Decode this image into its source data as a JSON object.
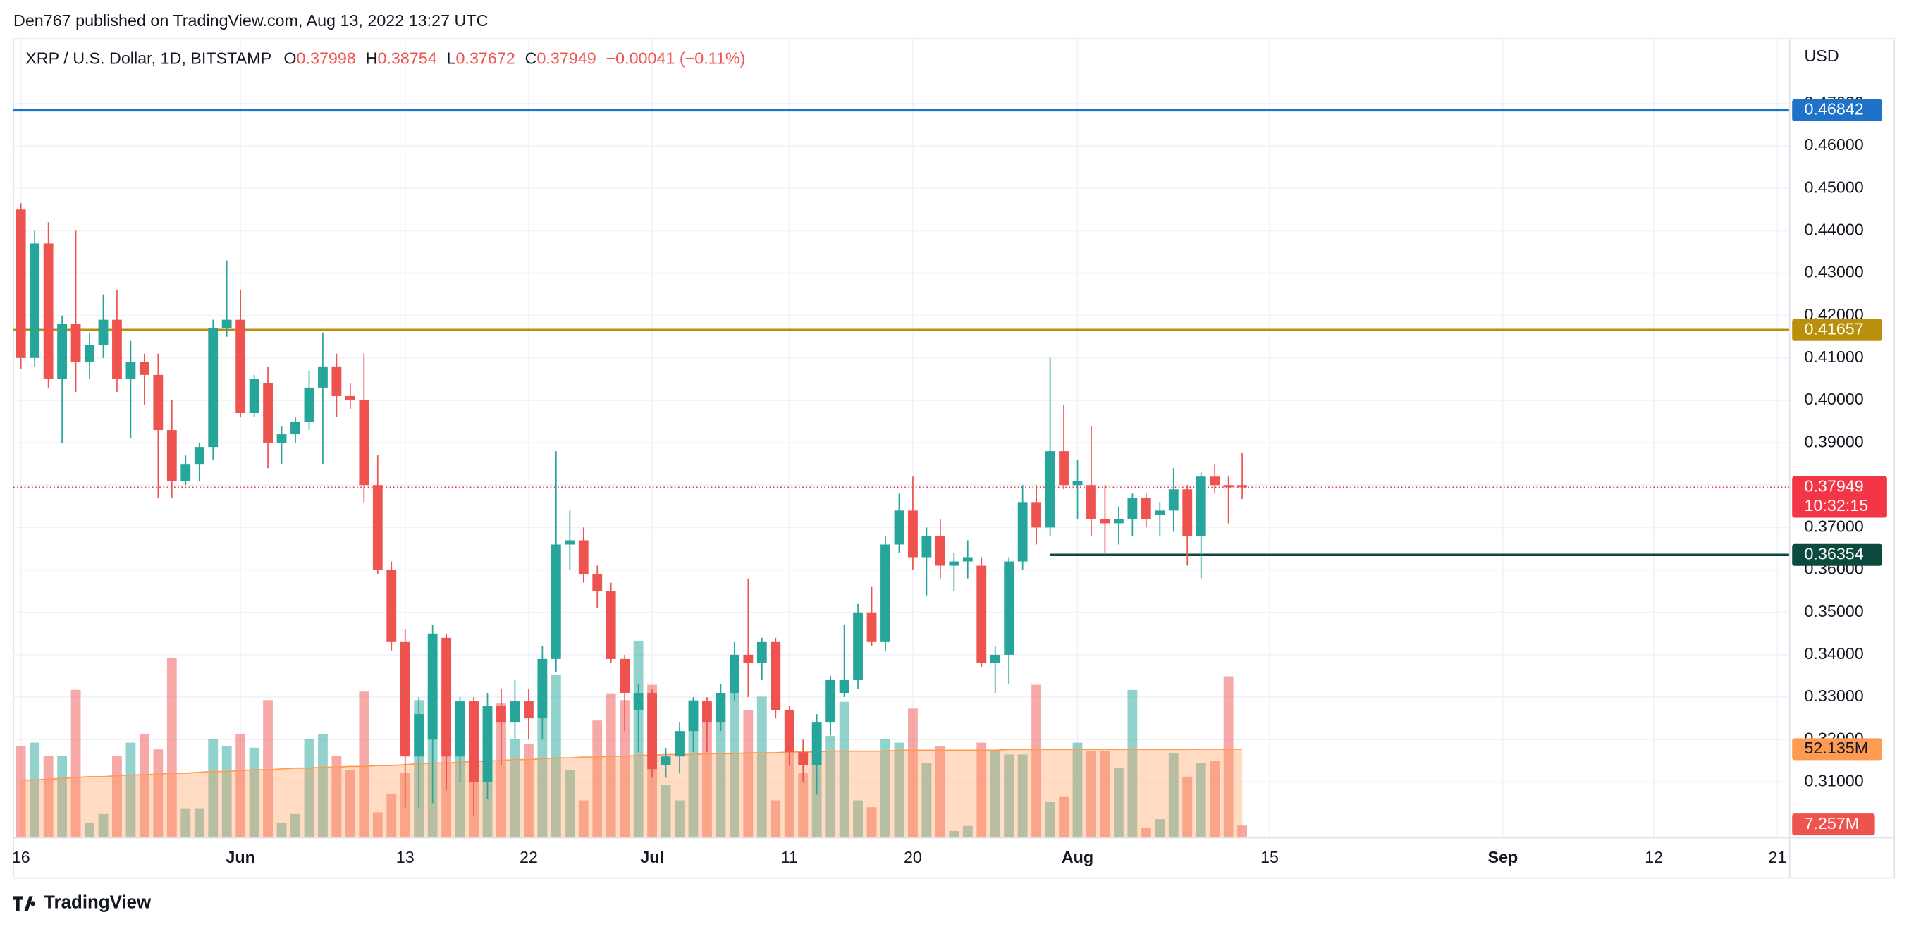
{
  "header": {
    "publisher": "Den767 published on TradingView.com, Aug 13, 2022 13:27 UTC",
    "footer": "TradingView"
  },
  "chart_data": {
    "type": "candlestick",
    "title": "XRP / U.S. Dollar, 1D, BITSTAMP",
    "legend": {
      "o": "O",
      "h": "H",
      "l": "L",
      "c": "C",
      "change": "−0.00041 (−0.11%)"
    },
    "y_unit": "USD",
    "up_color": "#26a69a",
    "down_color": "#ef5350",
    "grid": true,
    "x": [
      0,
      1,
      2,
      3,
      4,
      5,
      6,
      7,
      8,
      9,
      10,
      11,
      12,
      13,
      14,
      15,
      16,
      17,
      18,
      19,
      20,
      21,
      22,
      23,
      24,
      25,
      26,
      27,
      28,
      29,
      30,
      31,
      32,
      33,
      34,
      35,
      36,
      37,
      38,
      39,
      40,
      41,
      42,
      43,
      44,
      45,
      46,
      47,
      48,
      49,
      50,
      51,
      52,
      53,
      54,
      55,
      56,
      57,
      58,
      59,
      60,
      61,
      62,
      63,
      64,
      65,
      66,
      67,
      68,
      69,
      70,
      71,
      72,
      73,
      74,
      75,
      76,
      77,
      78,
      79,
      80,
      81,
      82,
      83,
      84,
      85,
      86,
      87,
      88,
      89
    ],
    "open": [
      0.445,
      0.41,
      0.437,
      0.405,
      0.418,
      0.409,
      0.413,
      0.419,
      0.405,
      0.409,
      0.406,
      0.393,
      0.381,
      0.385,
      0.389,
      0.417,
      0.419,
      0.397,
      0.404,
      0.39,
      0.392,
      0.395,
      0.403,
      0.408,
      0.401,
      0.4,
      0.38,
      0.36,
      0.343,
      0.316,
      0.32,
      0.344,
      0.316,
      0.329,
      0.31,
      0.328,
      0.324,
      0.329,
      0.325,
      0.339,
      0.366,
      0.367,
      0.359,
      0.355,
      0.339,
      0.327,
      0.331,
      0.314,
      0.316,
      0.322,
      0.329,
      0.324,
      0.331,
      0.34,
      0.338,
      0.343,
      0.327,
      0.317,
      0.314,
      0.324,
      0.331,
      0.334,
      0.35,
      0.343,
      0.366,
      0.374,
      0.363,
      0.368,
      0.361,
      0.362,
      0.361,
      0.338,
      0.34,
      0.362,
      0.376,
      0.37,
      0.388,
      0.38,
      0.38,
      0.372,
      0.371,
      0.372,
      0.377,
      0.373,
      0.374,
      0.379,
      0.368,
      0.382,
      0.38,
      0.37998
    ],
    "high": [
      0.4465,
      0.44,
      0.442,
      0.42,
      0.44,
      0.416,
      0.425,
      0.426,
      0.414,
      0.411,
      0.411,
      0.4,
      0.387,
      0.39,
      0.419,
      0.433,
      0.426,
      0.406,
      0.408,
      0.394,
      0.396,
      0.407,
      0.416,
      0.411,
      0.404,
      0.411,
      0.387,
      0.362,
      0.346,
      0.33,
      0.347,
      0.345,
      0.33,
      0.33,
      0.331,
      0.332,
      0.334,
      0.332,
      0.342,
      0.388,
      0.374,
      0.37,
      0.361,
      0.357,
      0.34,
      0.333,
      0.332,
      0.318,
      0.324,
      0.33,
      0.33,
      0.333,
      0.343,
      0.358,
      0.344,
      0.344,
      0.328,
      0.32,
      0.326,
      0.335,
      0.347,
      0.352,
      0.356,
      0.368,
      0.378,
      0.382,
      0.37,
      0.372,
      0.364,
      0.367,
      0.363,
      0.342,
      0.363,
      0.38,
      0.38,
      0.41,
      0.399,
      0.386,
      0.394,
      0.38,
      0.375,
      0.378,
      0.378,
      0.376,
      0.384,
      0.38,
      0.383,
      0.385,
      0.382,
      0.38754
    ],
    "low": [
      0.4075,
      0.408,
      0.403,
      0.39,
      0.402,
      0.405,
      0.41,
      0.402,
      0.391,
      0.399,
      0.377,
      0.377,
      0.38,
      0.381,
      0.386,
      0.415,
      0.396,
      0.396,
      0.384,
      0.385,
      0.39,
      0.393,
      0.385,
      0.396,
      0.398,
      0.376,
      0.359,
      0.341,
      0.304,
      0.304,
      0.305,
      0.308,
      0.31,
      0.302,
      0.306,
      0.314,
      0.32,
      0.32,
      0.32,
      0.336,
      0.36,
      0.357,
      0.351,
      0.338,
      0.322,
      0.317,
      0.311,
      0.311,
      0.312,
      0.317,
      0.317,
      0.322,
      0.329,
      0.33,
      0.334,
      0.325,
      0.314,
      0.31,
      0.307,
      0.321,
      0.33,
      0.332,
      0.342,
      0.341,
      0.364,
      0.36,
      0.354,
      0.358,
      0.355,
      0.358,
      0.337,
      0.331,
      0.333,
      0.36,
      0.366,
      0.368,
      0.379,
      0.372,
      0.368,
      0.364,
      0.366,
      0.368,
      0.37,
      0.368,
      0.369,
      0.361,
      0.358,
      0.378,
      0.371,
      0.37672
    ],
    "close": [
      0.41,
      0.437,
      0.405,
      0.418,
      0.409,
      0.413,
      0.419,
      0.405,
      0.409,
      0.406,
      0.393,
      0.381,
      0.385,
      0.389,
      0.417,
      0.419,
      0.397,
      0.405,
      0.39,
      0.392,
      0.395,
      0.403,
      0.408,
      0.401,
      0.4,
      0.38,
      0.36,
      0.343,
      0.316,
      0.326,
      0.345,
      0.316,
      0.329,
      0.31,
      0.328,
      0.324,
      0.329,
      0.325,
      0.339,
      0.366,
      0.367,
      0.359,
      0.355,
      0.339,
      0.331,
      0.331,
      0.313,
      0.316,
      0.322,
      0.329,
      0.324,
      0.331,
      0.34,
      0.338,
      0.343,
      0.327,
      0.317,
      0.314,
      0.324,
      0.334,
      0.334,
      0.35,
      0.343,
      0.366,
      0.374,
      0.363,
      0.368,
      0.361,
      0.362,
      0.363,
      0.338,
      0.34,
      0.362,
      0.376,
      0.37,
      0.388,
      0.38,
      0.381,
      0.372,
      0.371,
      0.372,
      0.377,
      0.372,
      0.374,
      0.379,
      0.368,
      0.382,
      0.38,
      0.3795,
      0.37949
    ],
    "volume": {
      "values": [
        54,
        56,
        48,
        48,
        87,
        9,
        14,
        48,
        56,
        61,
        52,
        106,
        17,
        17,
        58,
        54,
        61,
        53,
        81,
        9,
        14,
        58,
        61,
        48,
        40,
        86,
        15,
        26,
        38,
        81,
        90,
        87,
        60,
        37,
        71,
        79,
        58,
        55,
        96,
        96,
        40,
        22,
        69,
        85,
        81,
        116,
        90,
        31,
        22,
        81,
        78,
        69,
        96,
        75,
        83,
        22,
        51,
        38,
        66,
        60,
        80,
        22,
        18,
        58,
        56,
        76,
        44,
        54,
        4,
        7,
        56,
        51,
        49,
        49,
        90,
        21,
        24,
        56,
        51,
        51,
        41,
        87,
        6,
        11,
        50,
        36,
        44,
        45,
        95,
        7.257
      ],
      "last_label": "7.257M"
    },
    "volume_ma": {
      "color": "#ff9a52",
      "values": [
        34,
        34,
        34.5,
        35,
        35.5,
        36,
        36,
        36.5,
        37,
        37,
        37.5,
        38,
        38,
        38.5,
        39,
        39,
        39.5,
        40,
        40,
        40.5,
        41,
        41,
        41.5,
        41.5,
        42,
        42,
        42.5,
        42.5,
        43,
        43.5,
        44,
        44,
        44.5,
        45,
        45,
        45.5,
        46,
        46,
        46.5,
        47,
        47,
        47.5,
        47.5,
        48,
        48,
        48.5,
        48.5,
        49,
        49,
        49,
        49.5,
        49.5,
        49.5,
        50,
        50,
        50,
        50.5,
        50.5,
        50.5,
        51,
        51,
        51,
        51,
        51,
        51.5,
        51.5,
        51.5,
        51.5,
        51.5,
        51.5,
        51.5,
        51.5,
        52,
        52,
        52,
        52,
        52,
        52,
        52,
        52,
        52,
        52,
        52,
        52,
        52,
        52,
        52.1,
        52.1,
        52.1,
        52.135
      ],
      "last_label": "52.135M"
    },
    "volume_ylim": [
      0,
      470
    ],
    "xlim": [
      -0.55,
      128.9
    ],
    "xticks": [
      {
        "value": 0,
        "label": "16"
      },
      {
        "value": 16,
        "label": "Jun"
      },
      {
        "value": 28,
        "label": "13"
      },
      {
        "value": 37,
        "label": "22"
      },
      {
        "value": 46,
        "label": "Jul"
      },
      {
        "value": 56,
        "label": "11"
      },
      {
        "value": 65,
        "label": "20"
      },
      {
        "value": 77,
        "label": "Aug"
      },
      {
        "value": 91,
        "label": "15"
      },
      {
        "value": 108,
        "label": "Sep"
      },
      {
        "value": 119,
        "label": "12"
      },
      {
        "value": 128,
        "label": "21"
      }
    ],
    "ylim": [
      0.29682,
      0.48524
    ],
    "yticks": [
      {
        "value": 0.31,
        "label": "0.31000"
      },
      {
        "value": 0.32,
        "label": "0.32000"
      },
      {
        "value": 0.33,
        "label": "0.33000"
      },
      {
        "value": 0.34,
        "label": "0.34000"
      },
      {
        "value": 0.35,
        "label": "0.35000"
      },
      {
        "value": 0.36,
        "label": "0.36000"
      },
      {
        "value": 0.37,
        "label": "0.37000"
      },
      {
        "value": 0.38,
        "label": "0.38000"
      },
      {
        "value": 0.39,
        "label": "0.39000"
      },
      {
        "value": 0.4,
        "label": "0.40000"
      },
      {
        "value": 0.41,
        "label": "0.41000"
      },
      {
        "value": 0.42,
        "label": "0.42000"
      },
      {
        "value": 0.43,
        "label": "0.43000"
      },
      {
        "value": 0.44,
        "label": "0.44000"
      },
      {
        "value": 0.45,
        "label": "0.45000"
      },
      {
        "value": 0.46,
        "label": "0.46000"
      },
      {
        "value": 0.47,
        "label": "0.47000"
      }
    ],
    "hlines": [
      {
        "value": 0.46842,
        "color": "#1e73c8"
      },
      {
        "value": 0.41657,
        "color": "#b8900c"
      },
      {
        "value": 0.36354,
        "color": "#0d4a3e",
        "from_x": 75
      }
    ],
    "last_price": {
      "value": 0.37949,
      "color": "#f23645",
      "countdown": "10:32:15"
    }
  }
}
